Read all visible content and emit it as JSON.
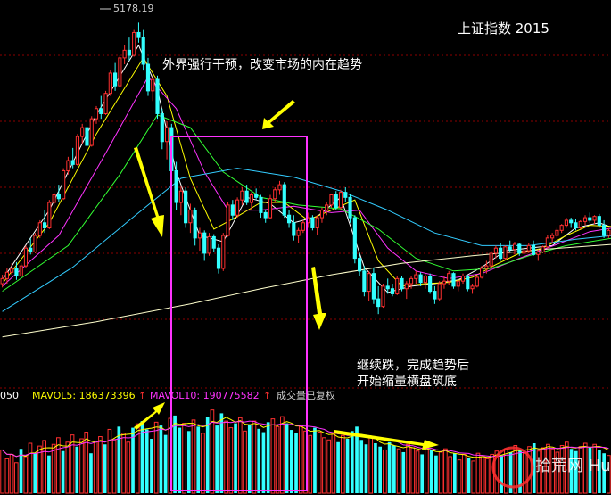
{
  "chart_data": {
    "type": "candlestick",
    "title": "上证指数 2015",
    "peak_label": "5178.19",
    "colors": {
      "up": "#ff3030",
      "down": "#33ffff",
      "background": "#000000",
      "gridline": "#8b0000"
    },
    "ylim": [
      2600,
      5300
    ],
    "candles": [
      [
        3120,
        3190,
        3090,
        3160
      ],
      [
        3160,
        3240,
        3120,
        3210
      ],
      [
        3210,
        3280,
        3190,
        3240
      ],
      [
        3240,
        3290,
        3150,
        3180
      ],
      [
        3180,
        3280,
        3170,
        3260
      ],
      [
        3260,
        3420,
        3240,
        3400
      ],
      [
        3400,
        3480,
        3350,
        3370
      ],
      [
        3370,
        3520,
        3360,
        3500
      ],
      [
        3500,
        3620,
        3480,
        3600
      ],
      [
        3600,
        3700,
        3520,
        3560
      ],
      [
        3560,
        3780,
        3550,
        3760
      ],
      [
        3760,
        3840,
        3700,
        3820
      ],
      [
        3820,
        3900,
        3760,
        3790
      ],
      [
        3790,
        4030,
        3780,
        4010
      ],
      [
        4010,
        4120,
        3980,
        4090
      ],
      [
        4090,
        4190,
        4030,
        4060
      ],
      [
        4060,
        4300,
        4050,
        4280
      ],
      [
        4280,
        4380,
        4220,
        4350
      ],
      [
        4350,
        4420,
        4180,
        4210
      ],
      [
        4210,
        4440,
        4200,
        4420
      ],
      [
        4420,
        4520,
        4380,
        4500
      ],
      [
        4500,
        4600,
        4420,
        4460
      ],
      [
        4460,
        4640,
        4450,
        4620
      ],
      [
        4620,
        4800,
        4600,
        4780
      ],
      [
        4780,
        4860,
        4640,
        4680
      ],
      [
        4680,
        4920,
        4670,
        4900
      ],
      [
        4900,
        5000,
        4850,
        4960
      ],
      [
        4960,
        5060,
        4880,
        4920
      ],
      [
        4920,
        5120,
        4910,
        5100
      ],
      [
        5100,
        5178,
        5020,
        5060
      ],
      [
        5060,
        5120,
        4800,
        4850
      ],
      [
        4850,
        4900,
        4600,
        4640
      ],
      [
        4640,
        4760,
        4560,
        4730
      ],
      [
        4730,
        4760,
        4420,
        4460
      ],
      [
        4460,
        4500,
        4180,
        4240
      ],
      [
        4240,
        4400,
        4100,
        4350
      ],
      [
        4350,
        4380,
        3960,
        4010
      ],
      [
        4010,
        4080,
        3700,
        3760
      ],
      [
        3760,
        3890,
        3660,
        3850
      ],
      [
        3850,
        3880,
        3560,
        3600
      ],
      [
        3600,
        3750,
        3520,
        3700
      ],
      [
        3700,
        3720,
        3420,
        3480
      ],
      [
        3480,
        3560,
        3380,
        3520
      ],
      [
        3520,
        3540,
        3300,
        3360
      ],
      [
        3360,
        3520,
        3340,
        3490
      ],
      [
        3490,
        3510,
        3370,
        3400
      ],
      [
        3400,
        3430,
        3200,
        3240
      ],
      [
        3240,
        3520,
        3220,
        3500
      ],
      [
        3500,
        3760,
        3490,
        3740
      ],
      [
        3740,
        3780,
        3620,
        3660
      ],
      [
        3660,
        3800,
        3640,
        3780
      ],
      [
        3780,
        3880,
        3740,
        3850
      ],
      [
        3850,
        3900,
        3740,
        3760
      ],
      [
        3760,
        3840,
        3700,
        3820
      ],
      [
        3820,
        3870,
        3780,
        3800
      ],
      [
        3800,
        3820,
        3640,
        3680
      ],
      [
        3680,
        3700,
        3600,
        3640
      ],
      [
        3640,
        3820,
        3630,
        3790
      ],
      [
        3790,
        3880,
        3760,
        3860
      ],
      [
        3860,
        3930,
        3820,
        3900
      ],
      [
        3900,
        3920,
        3640,
        3660
      ],
      [
        3660,
        3700,
        3560,
        3600
      ],
      [
        3600,
        3660,
        3460,
        3500
      ],
      [
        3500,
        3560,
        3440,
        3540
      ],
      [
        3540,
        3620,
        3520,
        3600
      ],
      [
        3600,
        3680,
        3560,
        3640
      ],
      [
        3640,
        3660,
        3540,
        3560
      ],
      [
        3560,
        3660,
        3500,
        3640
      ],
      [
        3640,
        3720,
        3600,
        3700
      ],
      [
        3700,
        3760,
        3660,
        3740
      ],
      [
        3740,
        3830,
        3720,
        3820
      ],
      [
        3820,
        3850,
        3700,
        3720
      ],
      [
        3720,
        3860,
        3700,
        3840
      ],
      [
        3840,
        3880,
        3760,
        3800
      ],
      [
        3800,
        3830,
        3600,
        3640
      ],
      [
        3640,
        3660,
        3280,
        3320
      ],
      [
        3320,
        3360,
        3180,
        3220
      ],
      [
        3220,
        3260,
        3020,
        3060
      ],
      [
        3060,
        3220,
        2980,
        3200
      ],
      [
        3200,
        3240,
        2960,
        3000
      ],
      [
        3000,
        3100,
        2880,
        2940
      ],
      [
        2940,
        3120,
        2930,
        3100
      ],
      [
        3100,
        3160,
        3040,
        3080
      ],
      [
        3080,
        3120,
        3020,
        3040
      ],
      [
        3040,
        3180,
        3030,
        3160
      ],
      [
        3160,
        3180,
        3060,
        3080
      ],
      [
        3080,
        3140,
        3000,
        3120
      ],
      [
        3120,
        3180,
        3080,
        3160
      ],
      [
        3160,
        3220,
        3120,
        3190
      ],
      [
        3190,
        3210,
        3100,
        3130
      ],
      [
        3130,
        3200,
        3080,
        3180
      ],
      [
        3180,
        3200,
        3040,
        3060
      ],
      [
        3060,
        3100,
        2960,
        3000
      ],
      [
        3000,
        3140,
        2980,
        3120
      ],
      [
        3120,
        3180,
        3080,
        3140
      ],
      [
        3140,
        3220,
        3110,
        3200
      ],
      [
        3200,
        3210,
        3080,
        3100
      ],
      [
        3100,
        3160,
        3060,
        3140
      ],
      [
        3140,
        3200,
        3120,
        3180
      ],
      [
        3180,
        3190,
        3060,
        3080
      ],
      [
        3080,
        3120,
        3040,
        3100
      ],
      [
        3100,
        3180,
        3090,
        3170
      ],
      [
        3170,
        3260,
        3160,
        3240
      ],
      [
        3240,
        3300,
        3200,
        3260
      ],
      [
        3260,
        3380,
        3250,
        3360
      ],
      [
        3360,
        3420,
        3320,
        3400
      ],
      [
        3400,
        3440,
        3300,
        3320
      ],
      [
        3320,
        3420,
        3310,
        3410
      ],
      [
        3410,
        3460,
        3370,
        3390
      ],
      [
        3390,
        3450,
        3350,
        3430
      ],
      [
        3430,
        3440,
        3340,
        3360
      ],
      [
        3360,
        3400,
        3320,
        3380
      ],
      [
        3380,
        3440,
        3360,
        3420
      ],
      [
        3420,
        3460,
        3340,
        3350
      ],
      [
        3350,
        3390,
        3300,
        3370
      ],
      [
        3370,
        3420,
        3360,
        3410
      ],
      [
        3410,
        3500,
        3400,
        3480
      ],
      [
        3480,
        3520,
        3440,
        3500
      ],
      [
        3500,
        3560,
        3480,
        3540
      ],
      [
        3540,
        3590,
        3520,
        3580
      ],
      [
        3580,
        3640,
        3560,
        3620
      ],
      [
        3620,
        3640,
        3560,
        3600
      ],
      [
        3600,
        3630,
        3540,
        3560
      ],
      [
        3560,
        3620,
        3550,
        3610
      ],
      [
        3610,
        3660,
        3580,
        3640
      ],
      [
        3640,
        3680,
        3600,
        3620
      ],
      [
        3620,
        3660,
        3590,
        3650
      ],
      [
        3650,
        3670,
        3560,
        3580
      ],
      [
        3580,
        3620,
        3480,
        3500
      ],
      [
        3500,
        3560,
        3480,
        3540
      ]
    ],
    "ma_lines": [
      {
        "name": "MA5",
        "color": "#ffffff",
        "points": [
          [
            0,
            3150
          ],
          [
            10,
            3700
          ],
          [
            20,
            4450
          ],
          [
            29,
            5000
          ],
          [
            33,
            4650
          ],
          [
            37,
            4000
          ],
          [
            42,
            3500
          ],
          [
            47,
            3450
          ],
          [
            52,
            3800
          ],
          [
            57,
            3750
          ],
          [
            62,
            3600
          ],
          [
            67,
            3650
          ],
          [
            72,
            3800
          ],
          [
            77,
            3250
          ],
          [
            82,
            3050
          ],
          [
            87,
            3100
          ],
          [
            92,
            3120
          ],
          [
            97,
            3150
          ],
          [
            102,
            3250
          ],
          [
            107,
            3380
          ],
          [
            112,
            3400
          ],
          [
            117,
            3420
          ],
          [
            122,
            3560
          ],
          [
            127,
            3600
          ],
          [
            130,
            3560
          ]
        ]
      },
      {
        "name": "MA10",
        "color": "#ffff00",
        "points": [
          [
            0,
            3120
          ],
          [
            10,
            3600
          ],
          [
            20,
            4300
          ],
          [
            30,
            4900
          ],
          [
            35,
            4600
          ],
          [
            40,
            3950
          ],
          [
            45,
            3550
          ],
          [
            50,
            3650
          ],
          [
            55,
            3760
          ],
          [
            60,
            3760
          ],
          [
            65,
            3620
          ],
          [
            70,
            3700
          ],
          [
            75,
            3780
          ],
          [
            80,
            3300
          ],
          [
            85,
            3100
          ],
          [
            90,
            3120
          ],
          [
            95,
            3130
          ],
          [
            100,
            3170
          ],
          [
            105,
            3270
          ],
          [
            110,
            3360
          ],
          [
            115,
            3400
          ],
          [
            120,
            3500
          ],
          [
            125,
            3580
          ],
          [
            130,
            3570
          ]
        ]
      },
      {
        "name": "MA20",
        "color": "#ff33ff",
        "points": [
          [
            0,
            3100
          ],
          [
            12,
            3500
          ],
          [
            22,
            4150
          ],
          [
            31,
            4750
          ],
          [
            37,
            4500
          ],
          [
            43,
            4000
          ],
          [
            48,
            3700
          ],
          [
            55,
            3700
          ],
          [
            62,
            3730
          ],
          [
            70,
            3680
          ],
          [
            76,
            3700
          ],
          [
            82,
            3400
          ],
          [
            88,
            3220
          ],
          [
            95,
            3160
          ],
          [
            102,
            3200
          ],
          [
            110,
            3320
          ],
          [
            118,
            3430
          ],
          [
            125,
            3530
          ],
          [
            130,
            3560
          ]
        ]
      },
      {
        "name": "MA30",
        "color": "#33ff33",
        "points": [
          [
            0,
            3060
          ],
          [
            14,
            3420
          ],
          [
            25,
            3980
          ],
          [
            33,
            4450
          ],
          [
            40,
            4350
          ],
          [
            47,
            4000
          ],
          [
            55,
            3800
          ],
          [
            63,
            3740
          ],
          [
            72,
            3710
          ],
          [
            80,
            3550
          ],
          [
            88,
            3320
          ],
          [
            96,
            3220
          ],
          [
            104,
            3240
          ],
          [
            112,
            3340
          ],
          [
            120,
            3420
          ],
          [
            130,
            3480
          ]
        ]
      },
      {
        "name": "MA60",
        "color": "#33ccff",
        "points": [
          [
            0,
            2900
          ],
          [
            15,
            3250
          ],
          [
            28,
            3650
          ],
          [
            38,
            3950
          ],
          [
            50,
            4030
          ],
          [
            62,
            3960
          ],
          [
            72,
            3850
          ],
          [
            82,
            3700
          ],
          [
            92,
            3520
          ],
          [
            102,
            3420
          ],
          [
            112,
            3420
          ],
          [
            122,
            3470
          ],
          [
            130,
            3500
          ]
        ]
      },
      {
        "name": "MA250",
        "color": "#ffffcc",
        "points": [
          [
            0,
            2700
          ],
          [
            20,
            2820
          ],
          [
            40,
            2960
          ],
          [
            55,
            3080
          ],
          [
            70,
            3190
          ],
          [
            85,
            3280
          ],
          [
            100,
            3340
          ],
          [
            115,
            3390
          ],
          [
            130,
            3430
          ]
        ]
      }
    ],
    "volume": {
      "mavol_labels": [
        "050",
        "MAVOL5: 186373396",
        "MAVOL10: 190775582",
        "成交量已复权"
      ],
      "mavol_arrows": [
        "↑",
        "↑"
      ],
      "mavol_colors": [
        "#ffff00",
        "#ff33ff"
      ],
      "values": [
        78,
        62,
        70,
        55,
        80,
        66,
        90,
        72,
        85,
        95,
        68,
        88,
        100,
        76,
        92,
        105,
        84,
        98,
        110,
        72,
        94,
        102,
        88,
        115,
        96,
        120,
        108,
        92,
        118,
        125,
        130,
        115,
        98,
        128,
        122,
        105,
        135,
        140,
        118,
        126,
        112,
        132,
        120,
        108,
        138,
        150,
        122,
        144,
        130,
        118,
        126,
        136,
        112,
        124,
        130,
        116,
        110,
        128,
        134,
        120,
        138,
        126,
        114,
        108,
        120,
        112,
        104,
        118,
        110,
        100,
        96,
        108,
        92,
        104,
        98,
        112,
        120,
        96,
        88,
        102,
        90,
        84,
        78,
        92,
        86,
        80,
        74,
        88,
        82,
        76,
        70,
        84,
        78,
        68,
        74,
        80,
        66,
        72,
        60,
        70,
        64,
        58,
        72,
        66,
        62,
        70,
        76,
        68,
        80,
        74,
        86,
        78,
        72,
        84,
        90,
        76,
        82,
        88,
        80,
        74,
        86,
        92,
        80,
        76,
        84,
        90,
        82,
        88,
        78,
        72,
        68
      ]
    },
    "annotations": [
      {
        "text": "外界强行干预，改变市场的内在趋势"
      },
      {
        "text": "继续跌，完成趋势后"
      },
      {
        "text": "开始缩量横盘筑底"
      }
    ],
    "watermark": "拾荒网 Huang.CN"
  }
}
